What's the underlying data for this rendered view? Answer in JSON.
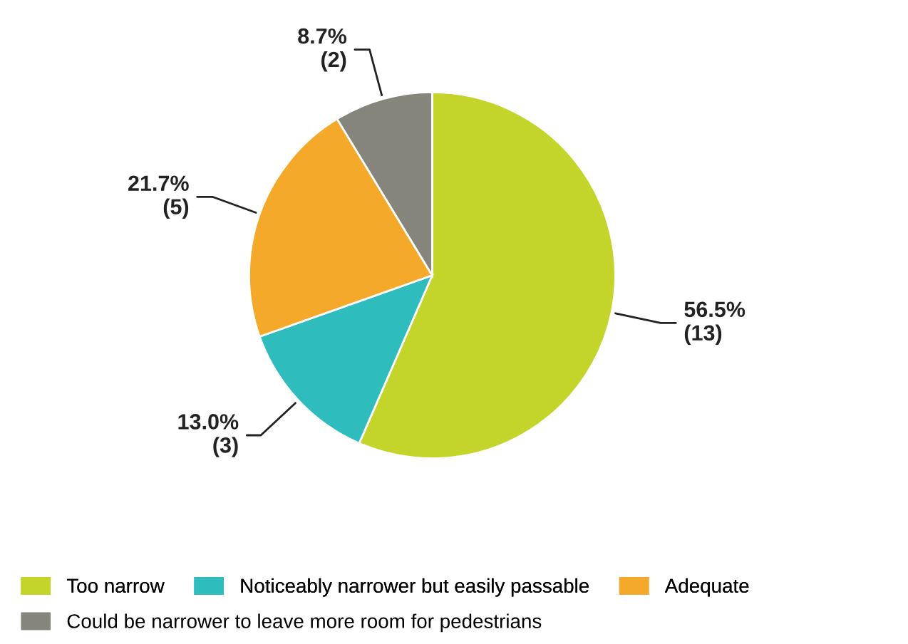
{
  "chart_data": {
    "type": "pie",
    "categories": [
      "Too narrow",
      "Noticeably narrower but easily passable",
      "Adequate",
      "Could be narrower to leave more room for pedestrians"
    ],
    "values": [
      13,
      3,
      5,
      2
    ],
    "colors": [
      "#c3d52b",
      "#2fbcbc",
      "#f5a92a",
      "#85857c"
    ],
    "value_labels": [
      "56.5%\n(13)",
      "13.0%\n(3)",
      "21.7%\n(5)",
      "8.7%\n(2)"
    ],
    "legend": "bottom"
  }
}
